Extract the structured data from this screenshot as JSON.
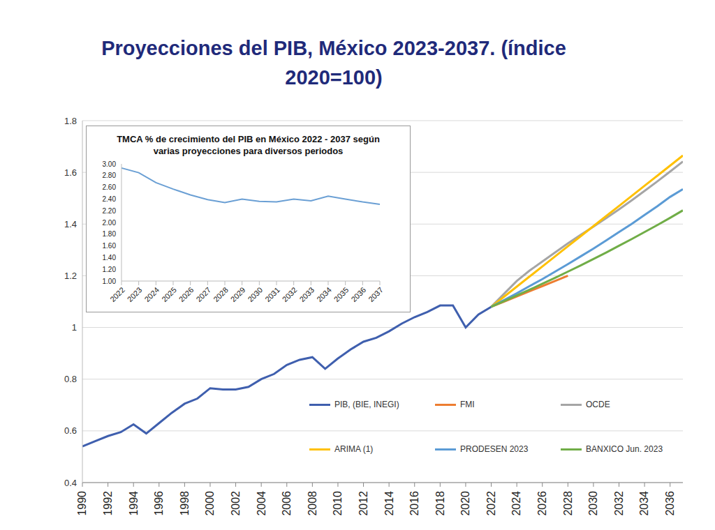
{
  "chart_data": [
    {
      "type": "line",
      "title": "Proyecciones del PIB, México 2023-2037. (índice 2020=100)",
      "x": [
        1990,
        1991,
        1992,
        1993,
        1994,
        1995,
        1996,
        1997,
        1998,
        1999,
        2000,
        2001,
        2002,
        2003,
        2004,
        2005,
        2006,
        2007,
        2008,
        2009,
        2010,
        2011,
        2012,
        2013,
        2014,
        2015,
        2016,
        2017,
        2018,
        2019,
        2020,
        2021,
        2022,
        2023,
        2024,
        2025,
        2026,
        2027,
        2028,
        2029,
        2030,
        2031,
        2032,
        2033,
        2034,
        2035,
        2036,
        2037
      ],
      "series": [
        {
          "name": "PIB, (BIE, INEGI)",
          "color": "#3f5fae",
          "values": [
            0.54,
            0.56,
            0.58,
            0.595,
            0.625,
            0.59,
            0.63,
            0.67,
            0.705,
            0.725,
            0.765,
            0.76,
            0.76,
            0.77,
            0.8,
            0.82,
            0.855,
            0.875,
            0.885,
            0.84,
            0.88,
            0.915,
            0.945,
            0.96,
            0.985,
            1.015,
            1.04,
            1.06,
            1.085,
            1.085,
            1.0,
            1.05,
            1.08,
            null,
            null,
            null,
            null,
            null,
            null,
            null,
            null,
            null,
            null,
            null,
            null,
            null,
            null,
            null
          ]
        },
        {
          "name": "FMI",
          "color": "#ed7d31",
          "values": [
            null,
            null,
            null,
            null,
            null,
            null,
            null,
            null,
            null,
            null,
            null,
            null,
            null,
            null,
            null,
            null,
            null,
            null,
            null,
            null,
            null,
            null,
            null,
            null,
            null,
            null,
            null,
            null,
            null,
            null,
            null,
            null,
            1.08,
            1.1,
            1.12,
            1.14,
            1.16,
            1.18,
            1.2,
            null,
            null,
            null,
            null,
            null,
            null,
            null,
            null,
            null
          ]
        },
        {
          "name": "OCDE",
          "color": "#a5a5a5",
          "values": [
            null,
            null,
            null,
            null,
            null,
            null,
            null,
            null,
            null,
            null,
            null,
            null,
            null,
            null,
            null,
            null,
            null,
            null,
            null,
            null,
            null,
            null,
            null,
            null,
            null,
            null,
            null,
            null,
            null,
            null,
            null,
            null,
            1.08,
            1.13,
            1.18,
            1.22,
            1.255,
            1.29,
            1.325,
            1.358,
            1.39,
            1.423,
            1.457,
            1.492,
            1.528,
            1.565,
            1.603,
            1.642
          ]
        },
        {
          "name": "ARIMA (1)",
          "color": "#ffc000",
          "values": [
            null,
            null,
            null,
            null,
            null,
            null,
            null,
            null,
            null,
            null,
            null,
            null,
            null,
            null,
            null,
            null,
            null,
            null,
            null,
            null,
            null,
            null,
            null,
            null,
            null,
            null,
            null,
            null,
            null,
            null,
            null,
            null,
            1.08,
            1.119,
            1.158,
            1.197,
            1.236,
            1.275,
            1.314,
            1.353,
            1.392,
            1.431,
            1.47,
            1.509,
            1.548,
            1.587,
            1.626,
            1.665
          ]
        },
        {
          "name": "PRODESEN 2023",
          "color": "#5b9bd5",
          "values": [
            null,
            null,
            null,
            null,
            null,
            null,
            null,
            null,
            null,
            null,
            null,
            null,
            null,
            null,
            null,
            null,
            null,
            null,
            null,
            null,
            null,
            null,
            null,
            null,
            null,
            null,
            null,
            null,
            null,
            null,
            null,
            null,
            1.08,
            1.106,
            1.132,
            1.16,
            1.187,
            1.216,
            1.245,
            1.275,
            1.305,
            1.337,
            1.369,
            1.401,
            1.435,
            1.469,
            1.505,
            1.535
          ]
        },
        {
          "name": "BANXICO Jun. 2023",
          "color": "#70ad47",
          "values": [
            null,
            null,
            null,
            null,
            null,
            null,
            null,
            null,
            null,
            null,
            null,
            null,
            null,
            null,
            null,
            null,
            null,
            null,
            null,
            null,
            null,
            null,
            null,
            null,
            null,
            null,
            null,
            null,
            null,
            null,
            null,
            null,
            1.08,
            1.102,
            1.124,
            1.146,
            1.169,
            1.192,
            1.216,
            1.24,
            1.265,
            1.29,
            1.316,
            1.342,
            1.369,
            1.396,
            1.424,
            1.453
          ]
        }
      ],
      "xlim": [
        1990,
        2037
      ],
      "xticks": [
        1990,
        1992,
        1994,
        1996,
        1998,
        2000,
        2002,
        2004,
        2006,
        2008,
        2010,
        2012,
        2014,
        2016,
        2018,
        2020,
        2022,
        2024,
        2026,
        2028,
        2030,
        2032,
        2034,
        2036
      ],
      "ylim": [
        0.4,
        1.8
      ],
      "yticks": [
        0.4,
        0.6,
        0.8,
        1,
        1.2,
        1.4,
        1.6,
        1.8
      ],
      "grid": true,
      "legend": "bottom"
    },
    {
      "type": "line",
      "title": "TMCA % de crecimiento del PIB en México 2022 - 2037 según varias proyecciones  para diversos periodos",
      "categories": [
        "2022",
        "2023",
        "2024",
        "2025",
        "2026",
        "2027",
        "2028",
        "2029",
        "2030",
        "2031",
        "2032",
        "2033",
        "2034",
        "2035",
        "2036",
        "2037"
      ],
      "values": [
        2.93,
        2.85,
        2.68,
        2.57,
        2.47,
        2.39,
        2.34,
        2.4,
        2.36,
        2.35,
        2.4,
        2.37,
        2.45,
        2.4,
        2.35,
        2.31
      ],
      "color": "#6a9fd4",
      "ylim": [
        1,
        3
      ],
      "yticks": [
        {
          "value": 1,
          "label": "1.00"
        },
        {
          "value": 1.2,
          "label": "1.20"
        },
        {
          "value": 1.4,
          "label": "1.40"
        },
        {
          "value": 1.6,
          "label": "1.60"
        },
        {
          "value": 1.8,
          "label": "1.80"
        },
        {
          "value": 2,
          "label": "2.00"
        },
        {
          "value": 2.2,
          "label": "2.20"
        },
        {
          "value": 2.4,
          "label": "2.40"
        },
        {
          "value": 2.6,
          "label": "2.60"
        },
        {
          "value": 2.8,
          "label": "2.80"
        },
        {
          "value": 3,
          "label": "3.00"
        }
      ],
      "grid": false
    }
  ]
}
